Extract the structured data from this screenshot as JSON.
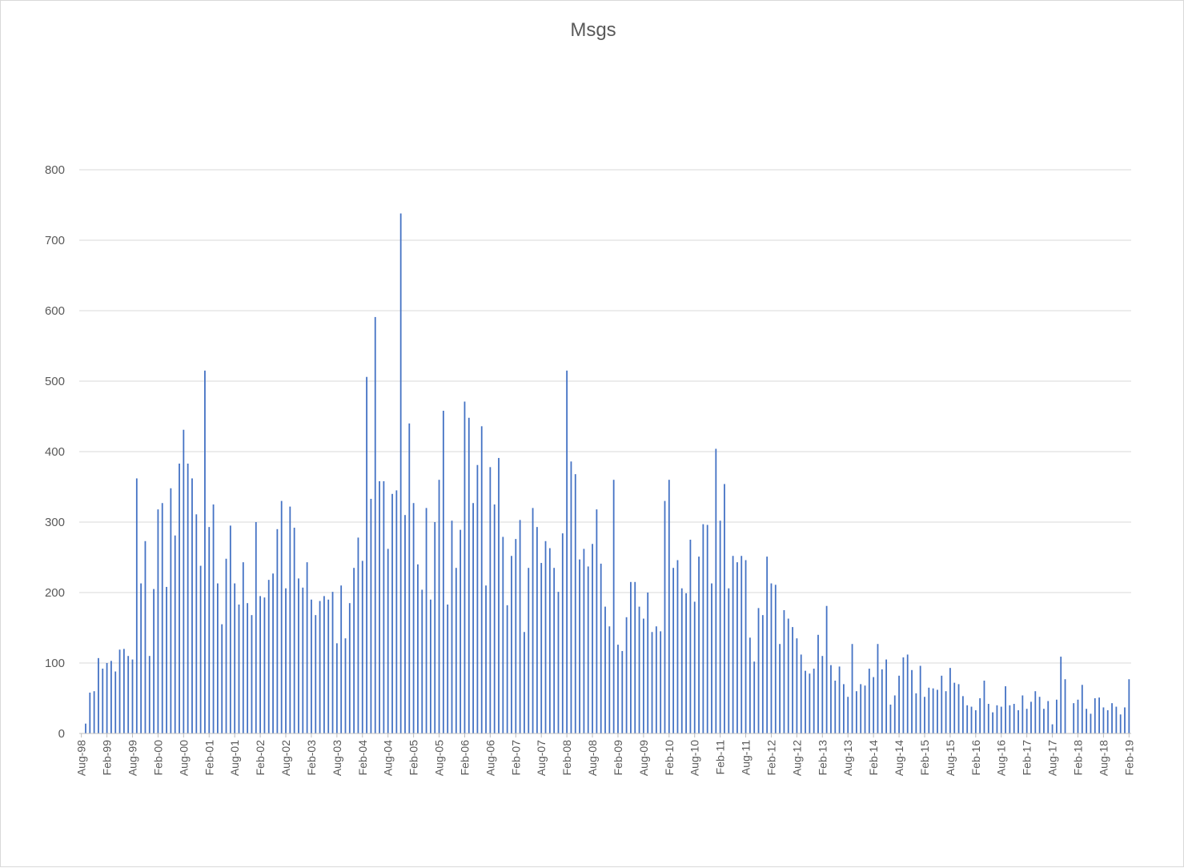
{
  "chart_data": {
    "type": "bar",
    "title": "Msgs",
    "xlabel": "",
    "ylabel": "",
    "ylim": [
      0,
      800
    ],
    "yticks": [
      "0",
      "100",
      "200",
      "300",
      "400",
      "500",
      "600",
      "700",
      "800"
    ],
    "grid": true,
    "legend": "none",
    "bar_color": "#4472c4",
    "x_start": "Aug-98",
    "x_end": "Feb-19",
    "x_tick_labels": [
      "Aug-98",
      "Feb-99",
      "Aug-99",
      "Feb-00",
      "Aug-00",
      "Feb-01",
      "Aug-01",
      "Feb-02",
      "Aug-02",
      "Feb-03",
      "Aug-03",
      "Feb-04",
      "Aug-04",
      "Feb-05",
      "Aug-05",
      "Feb-06",
      "Aug-06",
      "Feb-07",
      "Aug-07",
      "Feb-08",
      "Aug-08",
      "Feb-09",
      "Aug-09",
      "Feb-10",
      "Aug-10",
      "Feb-11",
      "Aug-11",
      "Feb-12",
      "Aug-12",
      "Feb-13",
      "Aug-13",
      "Feb-14",
      "Aug-14",
      "Feb-15",
      "Aug-15",
      "Feb-16",
      "Aug-16",
      "Feb-17",
      "Aug-17",
      "Feb-18",
      "Aug-18",
      "Feb-19"
    ],
    "values": [
      0,
      14,
      58,
      60,
      107,
      92,
      100,
      103,
      88,
      119,
      120,
      110,
      105,
      362,
      213,
      273,
      110,
      205,
      318,
      327,
      208,
      348,
      281,
      383,
      431,
      383,
      362,
      311,
      238,
      515,
      293,
      325,
      213,
      155,
      248,
      295,
      213,
      183,
      243,
      185,
      168,
      300,
      195,
      193,
      218,
      227,
      290,
      330,
      206,
      322,
      292,
      220,
      207,
      243,
      190,
      168,
      188,
      195,
      190,
      201,
      128,
      210,
      135,
      185,
      235,
      278,
      245,
      506,
      333,
      591,
      358,
      358,
      262,
      340,
      345,
      738,
      310,
      440,
      327,
      240,
      204,
      320,
      190,
      300,
      360,
      458,
      183,
      302,
      235,
      289,
      471,
      448,
      327,
      381,
      436,
      210,
      378,
      325,
      391,
      279,
      182,
      252,
      276,
      303,
      144,
      235,
      320,
      293,
      242,
      273,
      263,
      235,
      201,
      284,
      515,
      386,
      368,
      247,
      262,
      237,
      269,
      318,
      241,
      180,
      152,
      360,
      126,
      117,
      165,
      215,
      215,
      180,
      163,
      200,
      144,
      152,
      145,
      330,
      360,
      235,
      246,
      206,
      199,
      275,
      187,
      251,
      297,
      296,
      213,
      404,
      302,
      354,
      206,
      252,
      243,
      252,
      246,
      136,
      102,
      178,
      168,
      251,
      213,
      211,
      127,
      175,
      163,
      151,
      135,
      112,
      89,
      85,
      92,
      140,
      110,
      181,
      97,
      75,
      95,
      70,
      52,
      127,
      60,
      70,
      68,
      92,
      80,
      127,
      91,
      105,
      41,
      54,
      82,
      108,
      112,
      90,
      57,
      96,
      52,
      65,
      64,
      62,
      82,
      60,
      93,
      72,
      70,
      53,
      40,
      38,
      33,
      50,
      75,
      42,
      30,
      40,
      38,
      67,
      40,
      42,
      33,
      54,
      35,
      45,
      60,
      52,
      35,
      46,
      13,
      48,
      109,
      77,
      0,
      43,
      48,
      69,
      35,
      28,
      50,
      51,
      37,
      33,
      43,
      38,
      27,
      37,
      77
    ]
  }
}
